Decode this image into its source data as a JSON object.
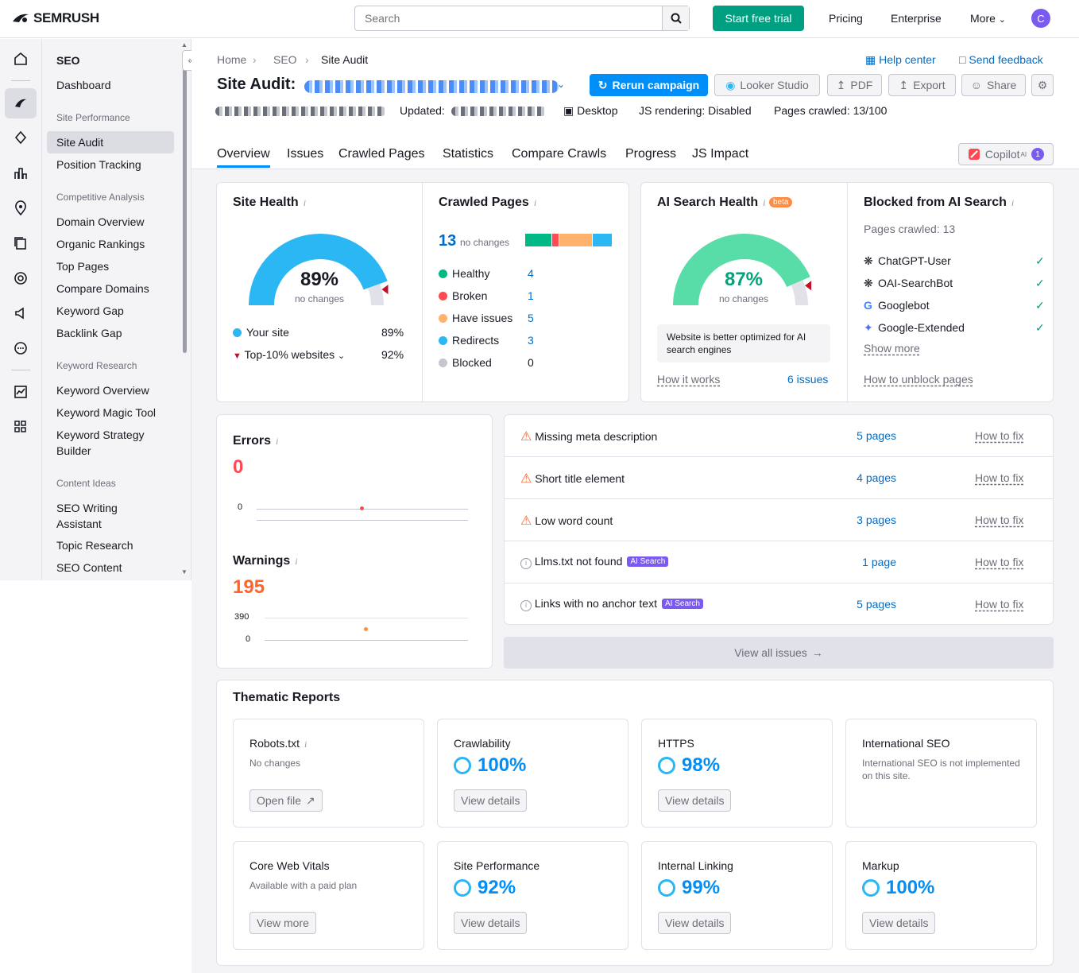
{
  "topbar": {
    "logo": "SEMRUSH",
    "search_placeholder": "Search",
    "trial": "Start free trial",
    "nav": [
      "Pricing",
      "Enterprise",
      "More"
    ],
    "avatar": "C"
  },
  "sidebar": {
    "title": "SEO",
    "dashboard": "Dashboard",
    "sections": [
      {
        "heading": "Site Performance",
        "items": [
          "Site Audit",
          "Position Tracking"
        ]
      },
      {
        "heading": "Competitive Analysis",
        "items": [
          "Domain Overview",
          "Organic Rankings",
          "Top Pages",
          "Compare Domains",
          "Keyword Gap",
          "Backlink Gap"
        ]
      },
      {
        "heading": "Keyword Research",
        "items": [
          "Keyword Overview",
          "Keyword Magic Tool",
          "Keyword Strategy",
          "Builder"
        ]
      },
      {
        "heading": "Content Ideas",
        "items": [
          "SEO Writing",
          "Assistant",
          "Topic Research",
          "SEO Content"
        ]
      }
    ]
  },
  "header": {
    "breadcrumb": [
      "Home",
      "SEO",
      "Site Audit"
    ],
    "help": "Help center",
    "feedback": "Send feedback",
    "title": "Site Audit:",
    "rerun": "Rerun campaign",
    "looker": "Looker Studio",
    "pdf": "PDF",
    "export": "Export",
    "share": "Share",
    "updated": "Updated:",
    "device": "Desktop",
    "js": "JS rendering: Disabled",
    "crawled": "Pages crawled: 13/100",
    "tabs": [
      "Overview",
      "Issues",
      "Crawled Pages",
      "Statistics",
      "Compare Crawls",
      "Progress",
      "JS Impact"
    ],
    "copilot": "Copilot",
    "copilot_sup": "AI",
    "copilot_count": "1"
  },
  "site_health": {
    "title": "Site Health",
    "value": "89%",
    "value_num": 89,
    "sub": "no changes",
    "your_site": "Your site",
    "your_site_val": "89%",
    "top10": "Top-10% websites",
    "top10_val": "92%"
  },
  "crawled_pages": {
    "title": "Crawled Pages",
    "count": "13",
    "sub": "no changes",
    "rows": [
      {
        "label": "Healthy",
        "value": "4",
        "color": "#00b884"
      },
      {
        "label": "Broken",
        "value": "1",
        "color": "#ff4953"
      },
      {
        "label": "Have issues",
        "value": "5",
        "color": "#ffb26e"
      },
      {
        "label": "Redirects",
        "value": "3",
        "color": "#2bb7f3"
      },
      {
        "label": "Blocked",
        "value": "0",
        "color": "#c4c7cf"
      }
    ]
  },
  "ai_health": {
    "title": "AI Search Health",
    "beta": "beta",
    "value": "87%",
    "value_num": 87,
    "sub": "no changes",
    "note": "Website is better optimized for AI search engines",
    "how": "How it works",
    "issues": "6 issues"
  },
  "blocked": {
    "title": "Blocked from AI Search",
    "sub": "Pages crawled: 13",
    "bots": [
      "ChatGPT-User",
      "OAI-SearchBot",
      "Googlebot",
      "Google-Extended"
    ],
    "more": "Show more",
    "unblock": "How to unblock pages"
  },
  "errors": {
    "title": "Errors",
    "value": "0",
    "axis0": "0"
  },
  "warnings": {
    "title": "Warnings",
    "value": "195",
    "axis_top": "390",
    "axis0": "0"
  },
  "issues": [
    {
      "text": "Missing meta description",
      "pages": "5 pages",
      "fix": "How to fix",
      "type": "warn",
      "badge": ""
    },
    {
      "text": "Short title element",
      "pages": "4 pages",
      "fix": "How to fix",
      "type": "warn",
      "badge": ""
    },
    {
      "text": "Low word count",
      "pages": "3 pages",
      "fix": "How to fix",
      "type": "warn",
      "badge": ""
    },
    {
      "text": "Llms.txt not found",
      "pages": "1 page",
      "fix": "How to fix",
      "type": "info",
      "badge": "AI Search"
    },
    {
      "text": "Links with no anchor text",
      "pages": "5 pages",
      "fix": "How to fix",
      "type": "info",
      "badge": "AI Search"
    }
  ],
  "view_all": "View all issues",
  "thematic": {
    "title": "Thematic Reports",
    "cards": [
      {
        "name": "Robots.txt",
        "sub": "No changes",
        "pct": "",
        "btn": "Open file"
      },
      {
        "name": "Crawlability",
        "sub": "",
        "pct": "100%",
        "btn": "View details"
      },
      {
        "name": "HTTPS",
        "sub": "",
        "pct": "98%",
        "btn": "View details"
      },
      {
        "name": "International SEO",
        "sub": "International SEO is not implemented on this site.",
        "pct": "",
        "btn": ""
      },
      {
        "name": "Core Web Vitals",
        "sub": "Available with a paid plan",
        "pct": "",
        "btn": "View more"
      },
      {
        "name": "Site Performance",
        "sub": "",
        "pct": "92%",
        "btn": "View details"
      },
      {
        "name": "Internal Linking",
        "sub": "",
        "pct": "99%",
        "btn": "View details"
      },
      {
        "name": "Markup",
        "sub": "",
        "pct": "100%",
        "btn": "View details"
      }
    ]
  }
}
